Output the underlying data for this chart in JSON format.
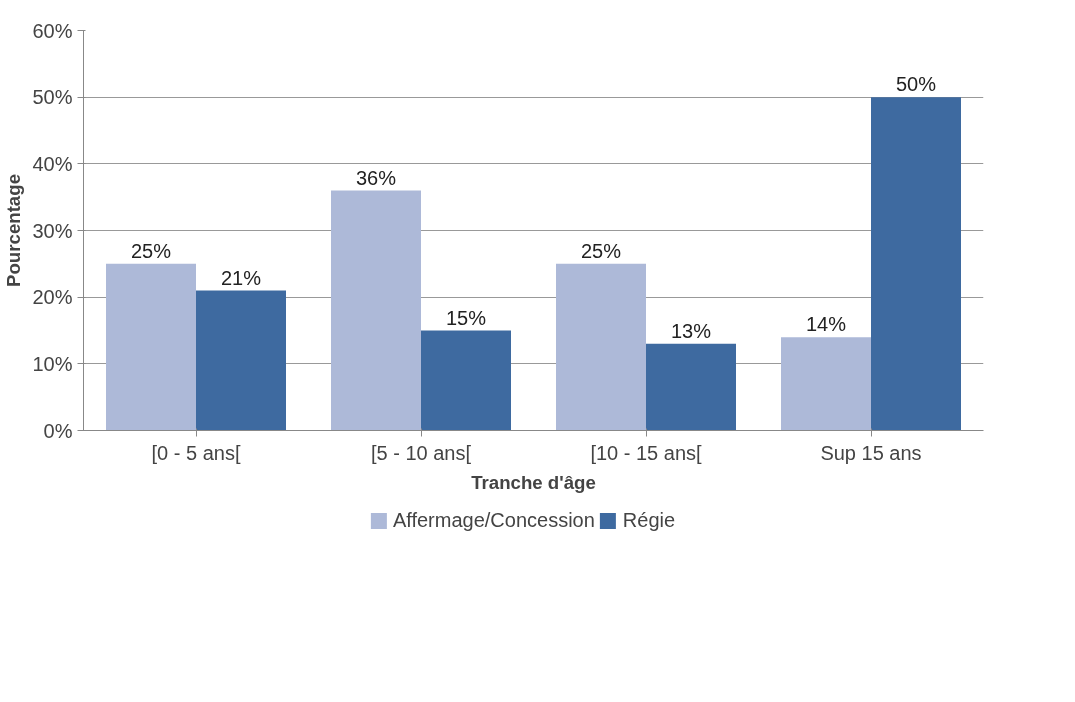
{
  "chart_data": {
    "type": "bar",
    "xlabel": "Tranche d'âge",
    "ylabel": "Pourcentage",
    "categories": [
      "[0 - 5 ans[",
      "[5 - 10 ans[",
      "[10 - 15 ans[",
      "Sup 15 ans"
    ],
    "series": [
      {
        "name": "Affermage/Concession",
        "color": "#adb9d8",
        "values": [
          25,
          36,
          25,
          14
        ],
        "value_labels": [
          "25%",
          "36%",
          "25%",
          "14%"
        ]
      },
      {
        "name": "Régie",
        "color": "#3e6aa0",
        "values": [
          21,
          15,
          13,
          50
        ],
        "value_labels": [
          "21%",
          "15%",
          "13%",
          "50%"
        ]
      }
    ],
    "ylim": [
      0,
      60
    ],
    "yticks": [
      {
        "value": 0,
        "label": "0%"
      },
      {
        "value": 10,
        "label": "10%"
      },
      {
        "value": 20,
        "label": "20%"
      },
      {
        "value": 30,
        "label": "30%"
      },
      {
        "value": 40,
        "label": "40%"
      },
      {
        "value": 50,
        "label": "50%"
      },
      {
        "value": 60,
        "label": "60%"
      }
    ],
    "grid": "y",
    "legend": "bottom"
  }
}
